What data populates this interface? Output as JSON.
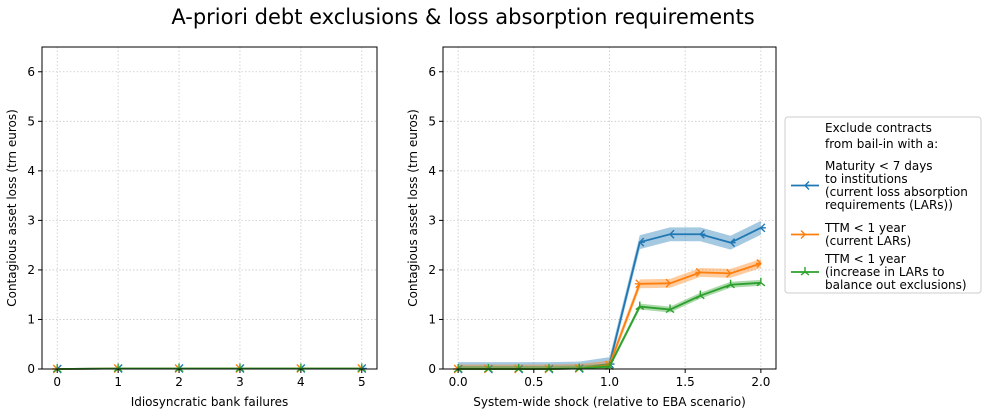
{
  "title": "A-priori debt exclusions & loss absorption requirements",
  "legend": {
    "title_lines": [
      "Exclude contracts",
      "from bail-in with a:"
    ],
    "entries": [
      {
        "series": 0,
        "lines": [
          "Maturity < 7 days",
          "to institutions",
          "(current loss absorption",
          " requirements (LARs))"
        ]
      },
      {
        "series": 1,
        "lines": [
          "TTM < 1 year",
          "(current LARs)"
        ]
      },
      {
        "series": 2,
        "lines": [
          "TTM < 1 year",
          "(increase in LARs to",
          " balance out exclusions)"
        ]
      }
    ]
  },
  "colors": {
    "series_0": "#1f77b4",
    "series_1": "#ff7f0e",
    "series_2": "#2ca02c"
  },
  "chart_data": [
    {
      "type": "line",
      "xlabel": "Idiosyncratic bank failures",
      "ylabel": "Contagious asset loss (trn euros)",
      "xlim": [
        -0.25,
        5.25
      ],
      "ylim": [
        0,
        6.5
      ],
      "xticks": [
        "0",
        "1",
        "2",
        "3",
        "4",
        "5"
      ],
      "xtick_values": [
        0,
        1,
        2,
        3,
        4,
        5
      ],
      "yticks": [
        "0",
        "1",
        "2",
        "3",
        "4",
        "5",
        "6"
      ],
      "ytick_values": [
        0,
        1,
        2,
        3,
        4,
        5,
        6
      ],
      "grid": true,
      "x": [
        0,
        1,
        2,
        3,
        4,
        5
      ],
      "series": [
        {
          "values": [
            0.0,
            0.01,
            0.01,
            0.01,
            0.01,
            0.01
          ],
          "band": 0.005,
          "marker": "left",
          "color": "#1f77b4"
        },
        {
          "values": [
            0.0,
            0.01,
            0.01,
            0.01,
            0.01,
            0.01
          ],
          "band": 0.005,
          "marker": "right",
          "color": "#ff7f0e"
        },
        {
          "values": [
            0.0,
            0.01,
            0.01,
            0.01,
            0.01,
            0.01
          ],
          "band": 0.005,
          "marker": "tri",
          "color": "#2ca02c"
        }
      ]
    },
    {
      "type": "line",
      "xlabel": "System-wide shock (relative to EBA scenario)",
      "ylabel": "Contagious asset loss (trn euros)",
      "xlim": [
        -0.1,
        2.1
      ],
      "ylim": [
        0,
        6.5
      ],
      "xticks": [
        "0.0",
        "0.5",
        "1.0",
        "1.5",
        "2.0"
      ],
      "xtick_values": [
        0,
        0.5,
        1.0,
        1.5,
        2.0
      ],
      "yticks": [
        "0",
        "1",
        "2",
        "3",
        "4",
        "5",
        "6"
      ],
      "ytick_values": [
        0,
        1,
        2,
        3,
        4,
        5,
        6
      ],
      "grid": true,
      "x": [
        0.0,
        0.2,
        0.4,
        0.6,
        0.8,
        1.0,
        1.2,
        1.4,
        1.6,
        1.8,
        2.0
      ],
      "series": [
        {
          "values": [
            0.0,
            0.0,
            0.0,
            0.0,
            0.01,
            0.1,
            2.56,
            2.72,
            2.72,
            2.55,
            2.85
          ],
          "band": 0.14,
          "marker": "left",
          "color": "#1f77b4"
        },
        {
          "values": [
            0.0,
            0.0,
            0.0,
            0.0,
            0.01,
            0.08,
            1.72,
            1.73,
            1.95,
            1.93,
            2.13
          ],
          "band": 0.09,
          "marker": "right",
          "color": "#ff7f0e"
        },
        {
          "values": [
            0.0,
            0.0,
            0.0,
            0.0,
            0.01,
            0.05,
            1.26,
            1.2,
            1.48,
            1.7,
            1.74
          ],
          "band": 0.06,
          "marker": "tri",
          "color": "#2ca02c"
        }
      ]
    }
  ]
}
